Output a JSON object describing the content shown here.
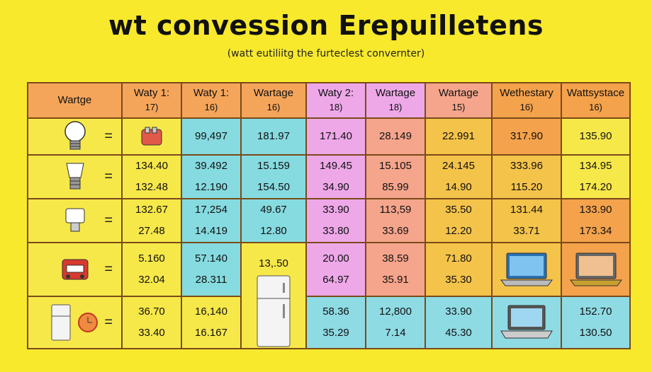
{
  "title": "wt convession Erepuilletens",
  "subtitle": "(watt eutiliitg the furteclest convernter)",
  "equals_sign": "=",
  "headers": [
    {
      "label": "Wartge",
      "sub": ""
    },
    {
      "label": "Waty 1:",
      "sub": "17)"
    },
    {
      "label": "Waty 1:",
      "sub": "16)"
    },
    {
      "label": "Wartage",
      "sub": "16)"
    },
    {
      "label": "Waty 2:",
      "sub": "18)"
    },
    {
      "label": "Wartage",
      "sub": "18)"
    },
    {
      "label": "Wartage",
      "sub": "15)"
    },
    {
      "label": "Wethestary",
      "sub": "16)"
    },
    {
      "label": "Wattsystace",
      "sub": "16)"
    }
  ],
  "rows": [
    {
      "icon": "light-bulb-icon",
      "cells": [
        [
          "",
          ""
        ],
        [
          "99,497"
        ],
        [
          "181.97"
        ],
        [
          "171.40"
        ],
        [
          "28.149"
        ],
        [
          "22.991"
        ],
        [
          "317.90"
        ],
        [
          "135.90"
        ]
      ]
    },
    {
      "icon": "led-bulb-icon",
      "cells": [
        [
          "134.40",
          "132.48"
        ],
        [
          "39.492",
          "12.190"
        ],
        [
          "15.159",
          "154.50"
        ],
        [
          "149.45",
          "34.90"
        ],
        [
          "15.105",
          "85.99"
        ],
        [
          "24.145",
          "14.90"
        ],
        [
          "333.96",
          "115.20"
        ],
        [
          "134.95",
          "174.20"
        ]
      ]
    },
    {
      "icon": "lamp-icon",
      "cells": [
        [
          "132.67",
          "27.48"
        ],
        [
          "17,254",
          "14.419"
        ],
        [
          "49.67",
          "12.80"
        ],
        [
          "33.90",
          "33.80"
        ],
        [
          "113,59",
          "33.69"
        ],
        [
          "35.50",
          "12.20"
        ],
        [
          "131.44",
          "33.71"
        ],
        [
          "133.90",
          "173.34"
        ]
      ]
    },
    {
      "icon": "oven-icon",
      "cells": [
        [
          "5.160",
          "32.04"
        ],
        [
          "57.140",
          "28.311"
        ],
        [
          "13,.50",
          ""
        ],
        [
          "20.00",
          "64.97"
        ],
        [
          "38.59",
          "35.91"
        ],
        [
          "71.80",
          "35.30"
        ],
        [
          "",
          ""
        ],
        [
          "",
          ""
        ]
      ]
    },
    {
      "icon": "fridge-icon",
      "cells": [
        [
          "36.70",
          "33.40"
        ],
        [
          "16,140",
          "16.167"
        ],
        [
          "",
          ""
        ],
        [
          "58.36",
          "35.29"
        ],
        [
          "12,800",
          "7.14"
        ],
        [
          "33.90",
          "45.30"
        ],
        [
          "",
          ""
        ],
        [
          "152.70",
          "130.50"
        ]
      ]
    }
  ],
  "colors": {
    "background": "#f8e92c",
    "border": "#7a4a18",
    "orange": "#f5a55a",
    "cyan": "#86dbe0",
    "pink": "#eea8e8",
    "salmon": "#f5a58c"
  }
}
